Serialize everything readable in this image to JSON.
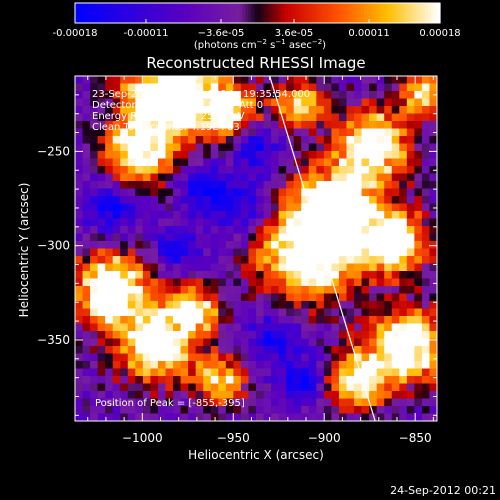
{
  "chart_data": {
    "type": "heatmap",
    "title": "Reconstructed RHESSI Image",
    "xlabel": "Heliocentric X (arcsec)",
    "ylabel": "Heliocentric Y (arcsec)",
    "xlim": [
      -1037,
      -838
    ],
    "ylim": [
      -393,
      -210
    ],
    "xticks": [
      -1000,
      -950,
      -900,
      -850
    ],
    "xtick_labels": [
      "−1000",
      "−950",
      "−900",
      "−850"
    ],
    "yticks": [
      -250,
      -300,
      -350
    ],
    "ytick_labels": [
      "−250",
      "−300",
      "−350"
    ],
    "colorbar": {
      "min": -0.00018,
      "max": 0.00018,
      "ticks": [
        -0.00018,
        -0.00011,
        -3.6e-05,
        3.6e-05,
        0.00011,
        0.00018
      ],
      "tick_labels": [
        "-0.00018",
        "-0.00011",
        "−3.6e-05",
        "3.6e-05",
        "0.00011",
        "0.00018"
      ],
      "units_prefix": "(photons cm",
      "units_sup1": "−2",
      "units_mid": " s",
      "units_sup2": "−1",
      "units_mid2": " asec",
      "units_sup3": "−2",
      "units_suffix": ")"
    },
    "annotations": [
      "23-Sep-2012 19:31:56.000 to 19:35:54.000",
      "Detectors: 3F 5F 6F 7F 8F 9F  Att 0",
      "Energy Range: 12.0 - 25.0 keV",
      "Clean     Total counts: 4.19E+03"
    ],
    "peak_label": "Position of Peak = [-855,-395]",
    "limb_line": [
      [
        -930,
        -210
      ],
      [
        -872,
        -393
      ]
    ],
    "grid": false,
    "colors": {
      "colormap": [
        "#0000ff",
        "#4a00b0",
        "#8a00a0",
        "#c00000",
        "#ff4000",
        "#ffa000",
        "#ffe000",
        "#ffffff"
      ]
    }
  },
  "footer": {
    "timestamp": "24-Sep-2012 00:21"
  }
}
